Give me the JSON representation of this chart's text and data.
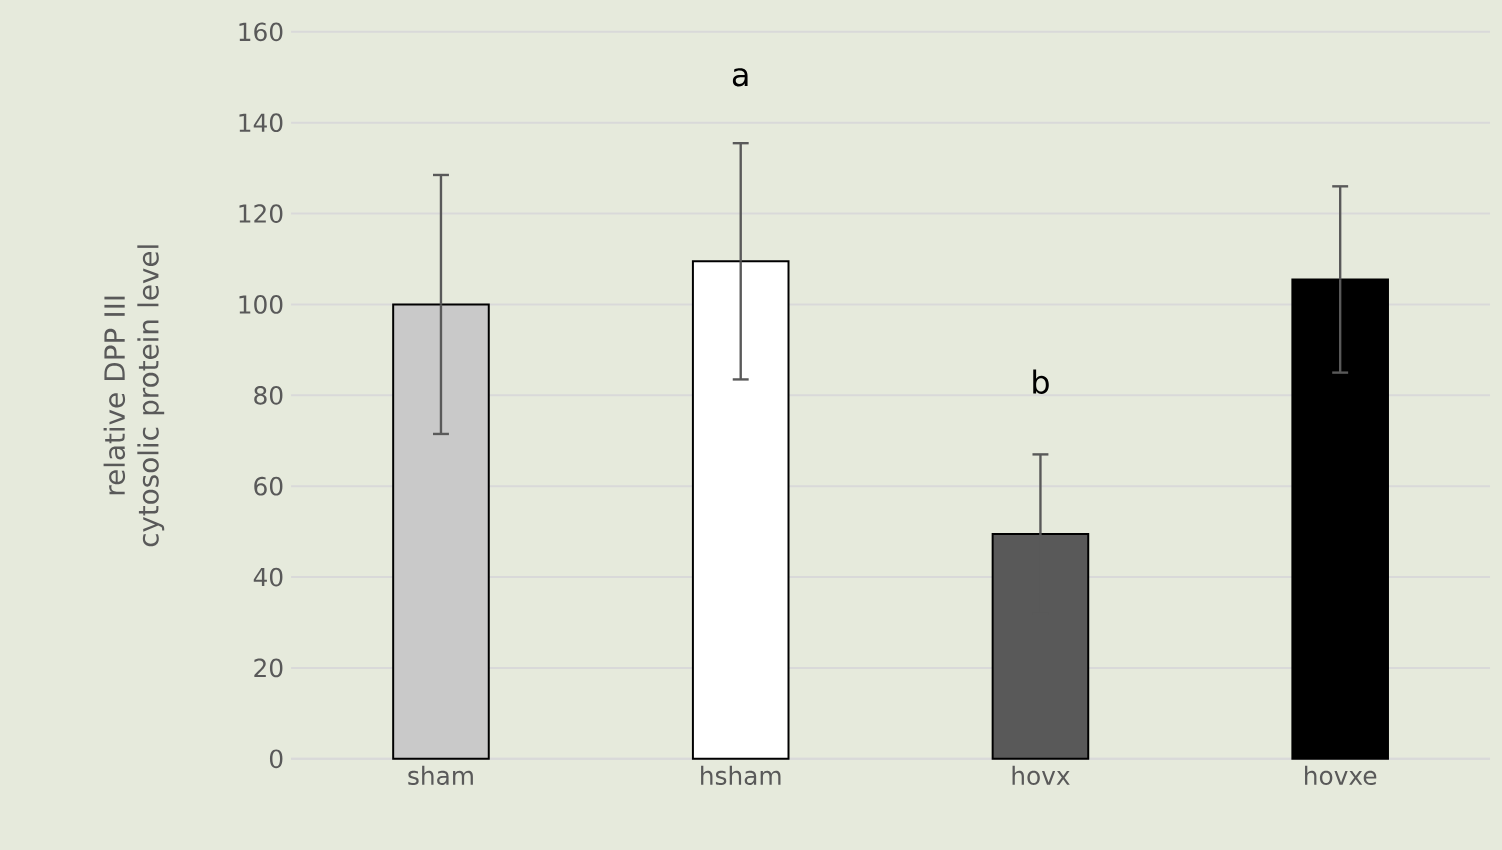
{
  "chart_data": {
    "type": "bar",
    "ylabel": "relative DPP III cytosolic protein level",
    "categories": [
      "sham",
      "hsham",
      "hovx",
      "hovxe"
    ],
    "values": [
      100,
      109.5,
      49.5,
      105.5
    ],
    "errors": [
      28.5,
      26,
      17.5,
      20.5
    ],
    "colors": [
      "#c9c9c9",
      "#ffffff",
      "#595959",
      "#000000"
    ],
    "ylim": [
      0,
      160
    ],
    "yticks": [
      0,
      20,
      40,
      60,
      80,
      100,
      120,
      140,
      160
    ],
    "grid": "y",
    "annotations": [
      "a",
      "b"
    ]
  }
}
